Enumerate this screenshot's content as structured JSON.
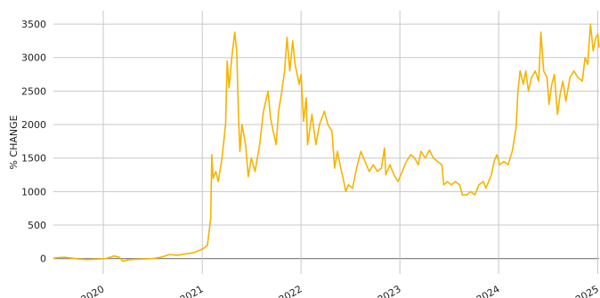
{
  "chart_data": {
    "type": "line",
    "title": "",
    "xlabel": "",
    "ylabel": "% CHANGE",
    "ylim": [
      -230,
      3700
    ],
    "xlim": [
      "2019-07-01",
      "2025-01-06"
    ],
    "grid": true,
    "legend": "none",
    "y_ticks": [
      0,
      500,
      1000,
      1500,
      2000,
      2500,
      3000,
      3500
    ],
    "x_ticks": [
      {
        "date": "2020-01-01",
        "label": "2020"
      },
      {
        "date": "2021-01-01",
        "label": "2021"
      },
      {
        "date": "2022-01-01",
        "label": "2022"
      },
      {
        "date": "2023-01-01",
        "label": "2023"
      },
      {
        "date": "2024-01-01",
        "label": "2024"
      },
      {
        "date": "2025-01-01",
        "label": "2025"
      }
    ],
    "series": [
      {
        "color": "#f5b400",
        "points": [
          [
            "2019-07-01",
            5
          ],
          [
            "2019-07-20",
            15
          ],
          [
            "2019-08-10",
            20
          ],
          [
            "2019-09-01",
            10
          ],
          [
            "2019-10-01",
            -5
          ],
          [
            "2019-11-01",
            -15
          ],
          [
            "2019-12-01",
            -10
          ],
          [
            "2020-01-10",
            0
          ],
          [
            "2020-02-10",
            40
          ],
          [
            "2020-03-01",
            20
          ],
          [
            "2020-03-13",
            -40
          ],
          [
            "2020-04-01",
            -20
          ],
          [
            "2020-05-01",
            -10
          ],
          [
            "2020-06-01",
            -5
          ],
          [
            "2020-07-01",
            0
          ],
          [
            "2020-08-01",
            20
          ],
          [
            "2020-09-01",
            60
          ],
          [
            "2020-10-01",
            50
          ],
          [
            "2020-11-01",
            70
          ],
          [
            "2020-12-01",
            90
          ],
          [
            "2020-12-20",
            120
          ],
          [
            "2021-01-05",
            150
          ],
          [
            "2021-01-20",
            200
          ],
          [
            "2021-02-01",
            600
          ],
          [
            "2021-02-05",
            1550
          ],
          [
            "2021-02-10",
            1200
          ],
          [
            "2021-02-20",
            1300
          ],
          [
            "2021-03-01",
            1150
          ],
          [
            "2021-03-15",
            1500
          ],
          [
            "2021-03-28",
            2000
          ],
          [
            "2021-04-03",
            2950
          ],
          [
            "2021-04-10",
            2550
          ],
          [
            "2021-04-20",
            3000
          ],
          [
            "2021-05-01",
            3380
          ],
          [
            "2021-05-08",
            3100
          ],
          [
            "2021-05-15",
            2100
          ],
          [
            "2021-05-20",
            1600
          ],
          [
            "2021-05-28",
            2000
          ],
          [
            "2021-06-10",
            1700
          ],
          [
            "2021-06-20",
            1220
          ],
          [
            "2021-07-01",
            1500
          ],
          [
            "2021-07-15",
            1300
          ],
          [
            "2021-08-01",
            1700
          ],
          [
            "2021-08-15",
            2200
          ],
          [
            "2021-09-01",
            2500
          ],
          [
            "2021-09-10",
            2100
          ],
          [
            "2021-09-20",
            1900
          ],
          [
            "2021-10-01",
            1700
          ],
          [
            "2021-10-10",
            2200
          ],
          [
            "2021-10-20",
            2450
          ],
          [
            "2021-11-01",
            2800
          ],
          [
            "2021-11-10",
            3300
          ],
          [
            "2021-11-20",
            2800
          ],
          [
            "2021-12-01",
            3250
          ],
          [
            "2021-12-10",
            2900
          ],
          [
            "2021-12-25",
            2600
          ],
          [
            "2022-01-01",
            2750
          ],
          [
            "2022-01-10",
            2050
          ],
          [
            "2022-01-20",
            2400
          ],
          [
            "2022-01-25",
            1700
          ],
          [
            "2022-02-10",
            2150
          ],
          [
            "2022-02-25",
            1700
          ],
          [
            "2022-03-10",
            2000
          ],
          [
            "2022-03-28",
            2200
          ],
          [
            "2022-04-10",
            2000
          ],
          [
            "2022-04-25",
            1900
          ],
          [
            "2022-05-05",
            1350
          ],
          [
            "2022-05-15",
            1600
          ],
          [
            "2022-05-25",
            1400
          ],
          [
            "2022-06-05",
            1200
          ],
          [
            "2022-06-15",
            1000
          ],
          [
            "2022-06-25",
            1100
          ],
          [
            "2022-07-10",
            1050
          ],
          [
            "2022-07-25",
            1350
          ],
          [
            "2022-08-10",
            1600
          ],
          [
            "2022-08-25",
            1450
          ],
          [
            "2022-09-10",
            1300
          ],
          [
            "2022-09-25",
            1400
          ],
          [
            "2022-10-10",
            1300
          ],
          [
            "2022-10-25",
            1350
          ],
          [
            "2022-11-05",
            1650
          ],
          [
            "2022-11-10",
            1250
          ],
          [
            "2022-11-25",
            1400
          ],
          [
            "2022-12-10",
            1250
          ],
          [
            "2022-12-25",
            1150
          ],
          [
            "2023-01-10",
            1300
          ],
          [
            "2023-01-25",
            1450
          ],
          [
            "2023-02-10",
            1550
          ],
          [
            "2023-02-25",
            1500
          ],
          [
            "2023-03-10",
            1400
          ],
          [
            "2023-03-20",
            1600
          ],
          [
            "2023-04-05",
            1500
          ],
          [
            "2023-04-20",
            1620
          ],
          [
            "2023-05-05",
            1500
          ],
          [
            "2023-05-20",
            1450
          ],
          [
            "2023-06-05",
            1400
          ],
          [
            "2023-06-12",
            1100
          ],
          [
            "2023-06-25",
            1150
          ],
          [
            "2023-07-10",
            1100
          ],
          [
            "2023-07-25",
            1150
          ],
          [
            "2023-08-10",
            1100
          ],
          [
            "2023-08-20",
            950
          ],
          [
            "2023-09-05",
            950
          ],
          [
            "2023-09-20",
            1000
          ],
          [
            "2023-10-05",
            950
          ],
          [
            "2023-10-20",
            1100
          ],
          [
            "2023-11-05",
            1150
          ],
          [
            "2023-11-15",
            1050
          ],
          [
            "2023-11-25",
            1150
          ],
          [
            "2023-12-05",
            1250
          ],
          [
            "2023-12-15",
            1450
          ],
          [
            "2023-12-25",
            1550
          ],
          [
            "2024-01-05",
            1400
          ],
          [
            "2024-01-20",
            1450
          ],
          [
            "2024-02-05",
            1400
          ],
          [
            "2024-02-20",
            1600
          ],
          [
            "2024-03-05",
            1950
          ],
          [
            "2024-03-12",
            2500
          ],
          [
            "2024-03-20",
            2800
          ],
          [
            "2024-04-01",
            2600
          ],
          [
            "2024-04-10",
            2800
          ],
          [
            "2024-04-20",
            2500
          ],
          [
            "2024-05-01",
            2700
          ],
          [
            "2024-05-15",
            2800
          ],
          [
            "2024-05-28",
            2650
          ],
          [
            "2024-06-05",
            3380
          ],
          [
            "2024-06-15",
            2800
          ],
          [
            "2024-06-28",
            2700
          ],
          [
            "2024-07-05",
            2300
          ],
          [
            "2024-07-15",
            2600
          ],
          [
            "2024-07-25",
            2750
          ],
          [
            "2024-08-05",
            2150
          ],
          [
            "2024-08-15",
            2450
          ],
          [
            "2024-08-25",
            2650
          ],
          [
            "2024-09-05",
            2350
          ],
          [
            "2024-09-20",
            2700
          ],
          [
            "2024-10-05",
            2800
          ],
          [
            "2024-10-20",
            2700
          ],
          [
            "2024-11-05",
            2650
          ],
          [
            "2024-11-15",
            3000
          ],
          [
            "2024-11-25",
            2900
          ],
          [
            "2024-12-05",
            3500
          ],
          [
            "2024-12-15",
            3100
          ],
          [
            "2024-12-25",
            3300
          ],
          [
            "2025-01-01",
            3350
          ],
          [
            "2025-01-06",
            3150
          ]
        ]
      }
    ]
  }
}
